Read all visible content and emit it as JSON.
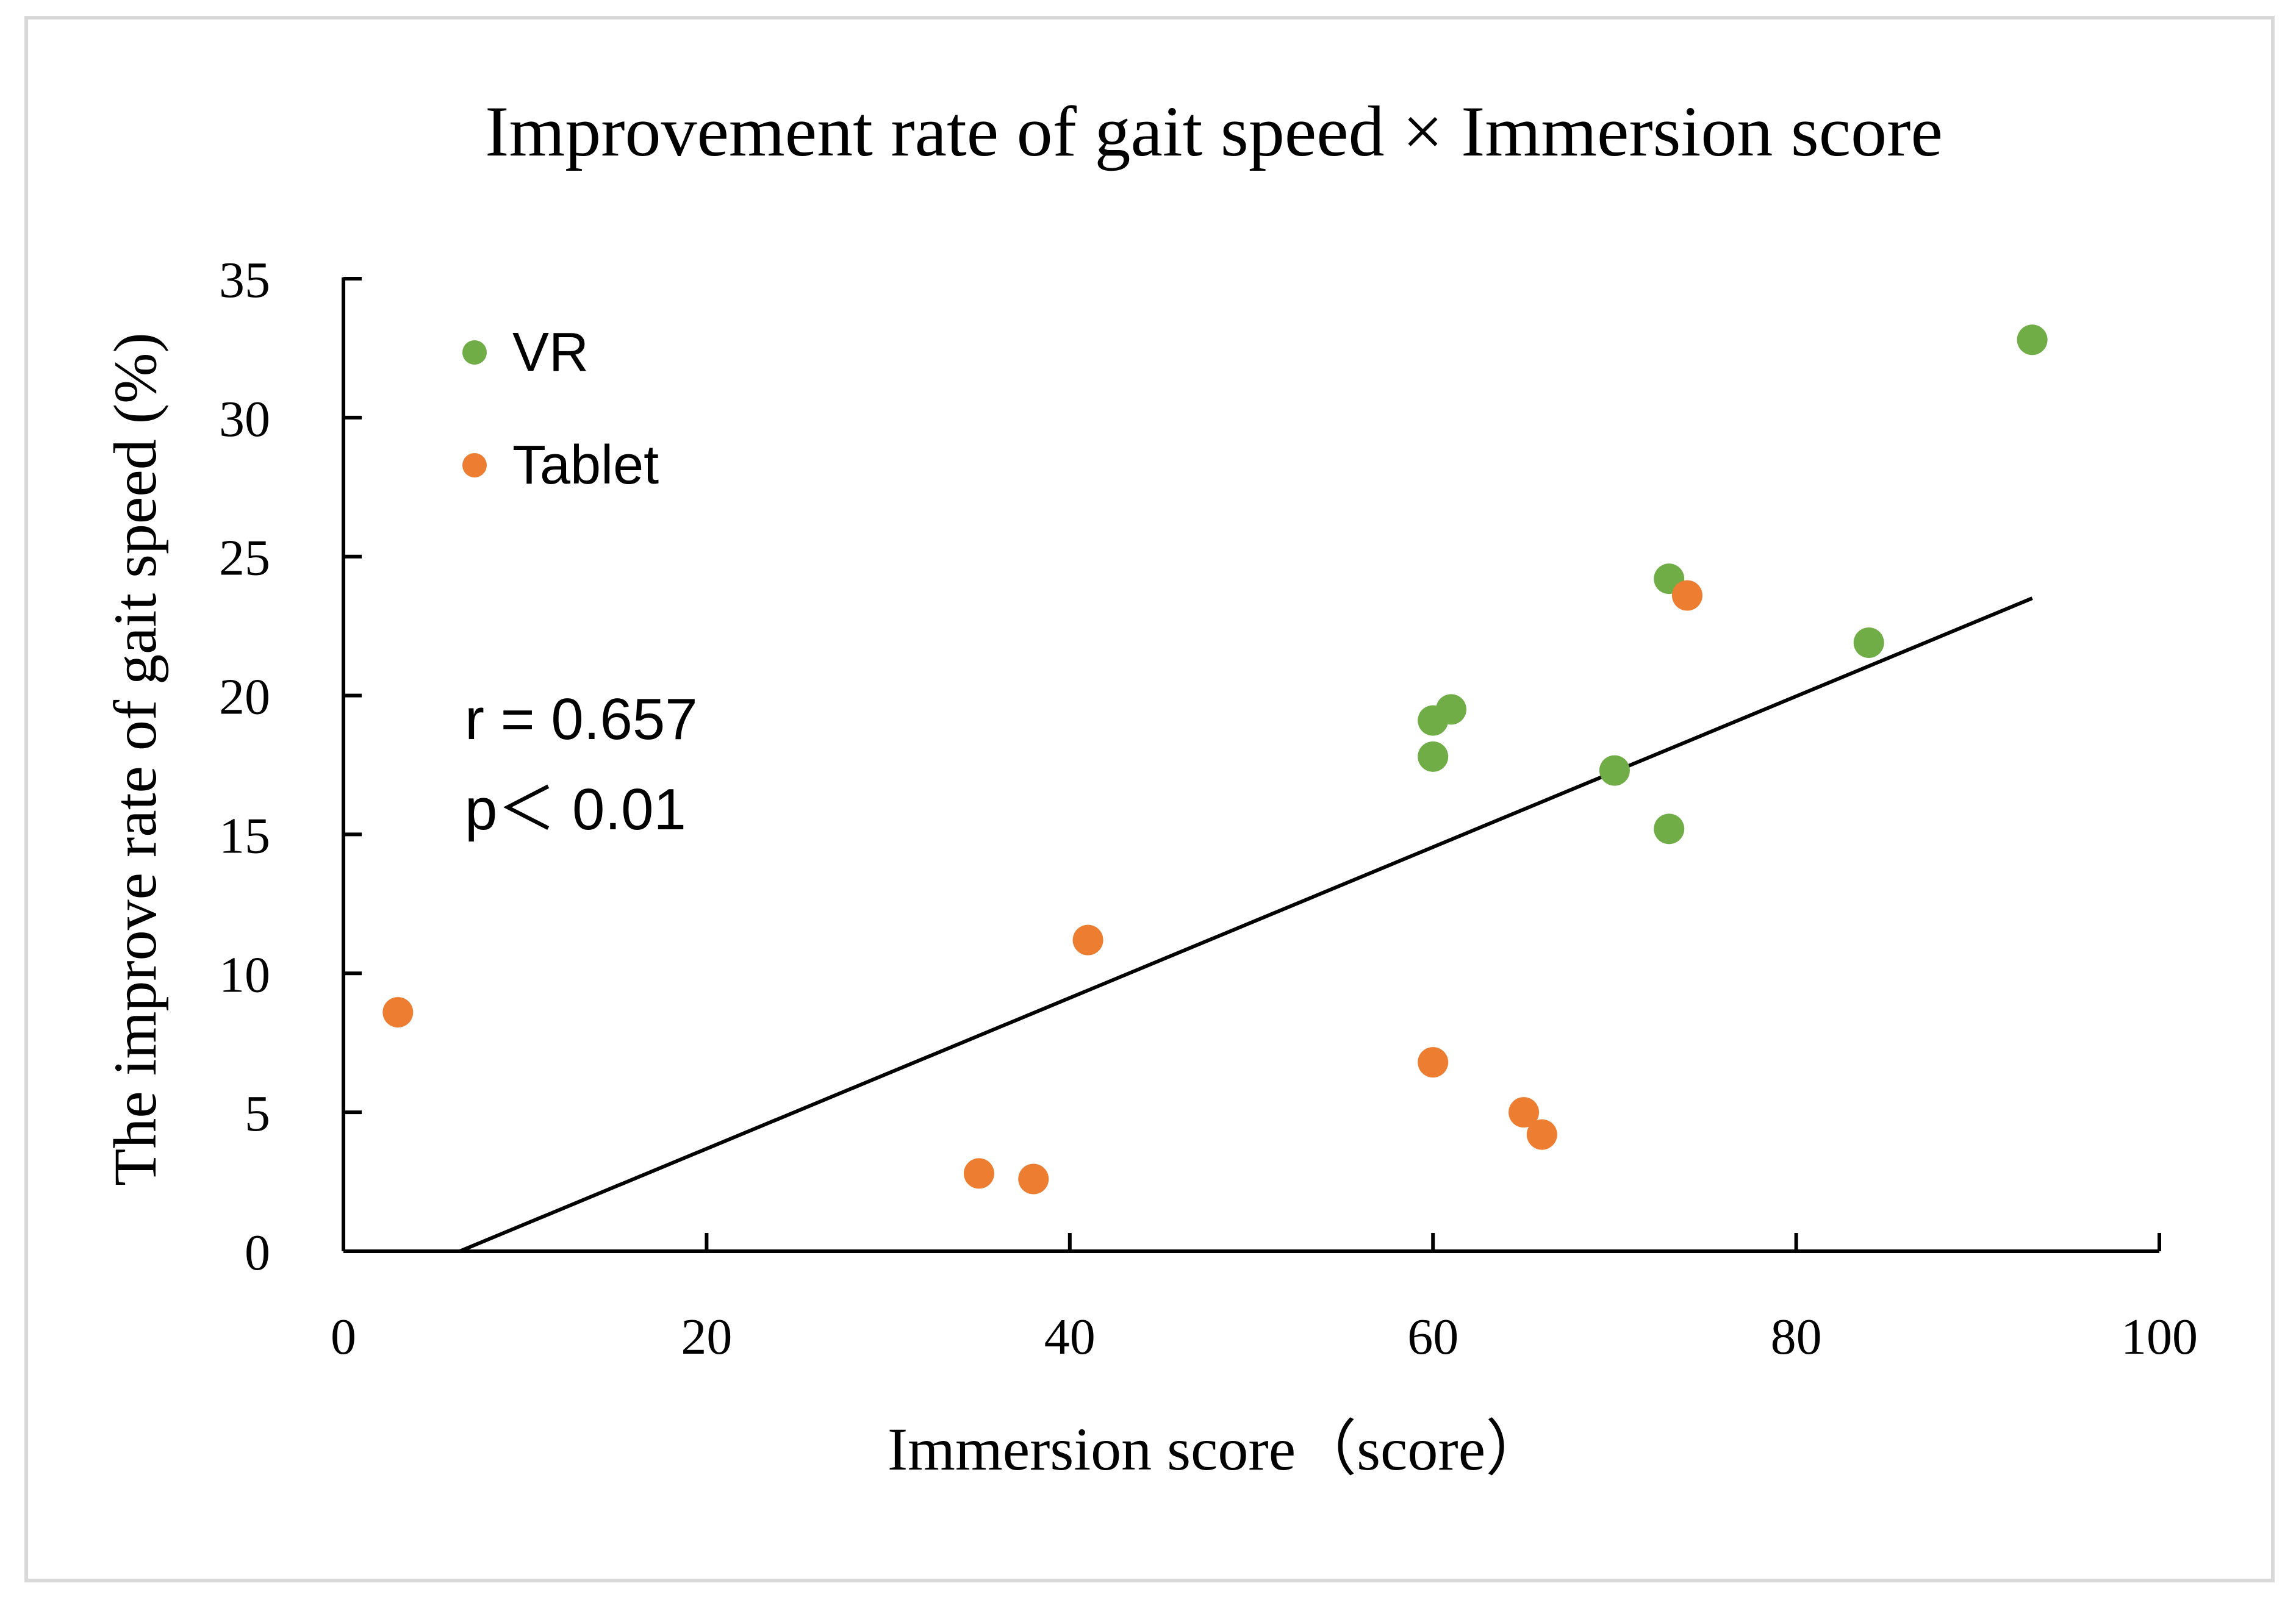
{
  "chart_data": {
    "type": "scatter",
    "title": "Improvement rate of gait speed × Immersion score",
    "xlabel": "Immersion score（score）",
    "ylabel": "The improve rate of gait speed (%)",
    "xlim": [
      0,
      100
    ],
    "ylim": [
      0,
      35
    ],
    "x_ticks": [
      0,
      20,
      40,
      60,
      80,
      100
    ],
    "y_ticks": [
      0,
      5,
      10,
      15,
      20,
      25,
      30,
      35
    ],
    "grid": false,
    "legend_position": "top-left",
    "series": [
      {
        "name": "VR",
        "color": "#70AD47",
        "points": [
          {
            "x": 60,
            "y": 19.1
          },
          {
            "x": 61,
            "y": 19.5
          },
          {
            "x": 60,
            "y": 17.8
          },
          {
            "x": 70,
            "y": 17.3
          },
          {
            "x": 73,
            "y": 24.2
          },
          {
            "x": 73,
            "y": 15.2
          },
          {
            "x": 84,
            "y": 21.9
          },
          {
            "x": 93,
            "y": 32.8
          }
        ]
      },
      {
        "name": "Tablet",
        "color": "#ED7D31",
        "points": [
          {
            "x": 3,
            "y": 8.6
          },
          {
            "x": 35,
            "y": 2.8
          },
          {
            "x": 38,
            "y": 2.6
          },
          {
            "x": 41,
            "y": 11.2
          },
          {
            "x": 60,
            "y": 6.8
          },
          {
            "x": 65,
            "y": 5.0
          },
          {
            "x": 66,
            "y": 4.2
          },
          {
            "x": 74,
            "y": 23.6
          }
        ]
      }
    ],
    "trendline": {
      "x_start": 6.4,
      "y_start": 0,
      "x_end": 93,
      "y_end": 23.5,
      "color": "#000000"
    },
    "annotations": [
      "r = 0.657",
      "p＜ 0.01"
    ]
  }
}
